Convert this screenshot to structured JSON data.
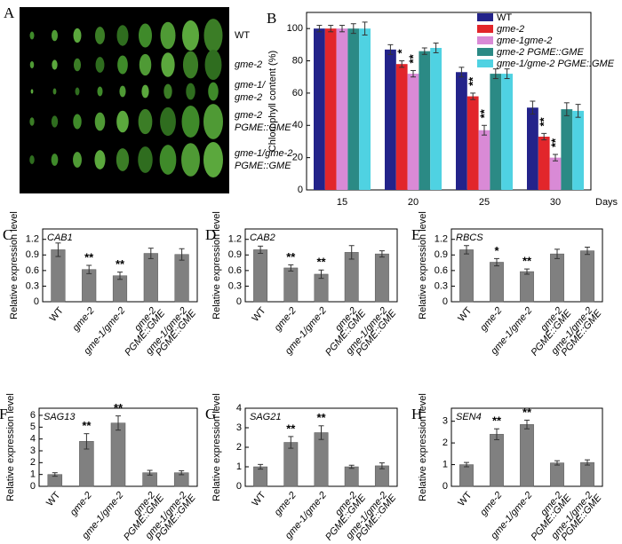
{
  "photo": {
    "panel": "A",
    "row_labels": [
      [
        "WT"
      ],
      [
        "gme-2"
      ],
      [
        "gme-1/",
        "gme-2"
      ],
      [
        "gme-2",
        "PGME::GME"
      ],
      [
        "gme-1/gme-2",
        "PGME::GME"
      ]
    ]
  },
  "chart_data": [
    {
      "type": "bar",
      "panel": "B",
      "y_label": "Chlorophyll content (%)",
      "x_label": "Days",
      "categories": [
        "15",
        "20",
        "25",
        "30"
      ],
      "ylim": [
        0,
        110
      ],
      "yticks": [
        0,
        20,
        40,
        60,
        80,
        100
      ],
      "series": [
        {
          "name": "WT",
          "color": "#23238a",
          "values": [
            100,
            87,
            73,
            51
          ],
          "errors": [
            2,
            3,
            3,
            4
          ],
          "significance": [
            null,
            null,
            null,
            null
          ]
        },
        {
          "name": "gme-2",
          "color": "#e2262b",
          "values": [
            100,
            78,
            58,
            33
          ],
          "errors": [
            2,
            2,
            2,
            2
          ],
          "significance": [
            null,
            "*",
            "**",
            "**"
          ]
        },
        {
          "name": "gme-1gme-2",
          "color": "#d98ad6",
          "values": [
            100,
            72,
            37,
            20
          ],
          "errors": [
            2,
            2,
            3,
            2
          ],
          "significance": [
            null,
            "**",
            "**",
            "**"
          ]
        },
        {
          "name": "gme-2 PGME::GME",
          "color": "#2b8a85",
          "values": [
            100,
            86,
            72,
            50
          ],
          "errors": [
            3,
            2,
            3,
            4
          ],
          "significance": [
            null,
            null,
            null,
            null
          ]
        },
        {
          "name": "gme-1/gme-2 PGME::GME",
          "color": "#4fd2e2",
          "values": [
            100,
            88,
            72,
            49
          ],
          "errors": [
            4,
            3,
            3,
            4
          ],
          "significance": [
            null,
            null,
            null,
            null
          ]
        }
      ]
    },
    {
      "type": "bar",
      "panel": "C",
      "title": "CAB1",
      "y_label": "Relative expression level",
      "color": "#808080",
      "categories": [
        "WT",
        "gme-2",
        "gme-1/gme-2",
        [
          "gme-2",
          "PGME::GME"
        ],
        [
          "gme-1/gme-2",
          "PGME::GME"
        ]
      ],
      "ylim": [
        0,
        1.4
      ],
      "yticks": [
        0,
        0.3,
        0.6,
        0.9,
        1.2
      ],
      "values": [
        1.0,
        0.62,
        0.5,
        0.93,
        0.91
      ],
      "errors": [
        0.13,
        0.08,
        0.07,
        0.1,
        0.11
      ],
      "significance": [
        null,
        "**",
        "**",
        null,
        null
      ]
    },
    {
      "type": "bar",
      "panel": "D",
      "title": "CAB2",
      "y_label": "Relative expression level",
      "color": "#808080",
      "categories": [
        "WT",
        "gme-2",
        "gme-1/gme-2",
        [
          "gme-2",
          "PGME::GME"
        ],
        [
          "gme-1/gme-2",
          "PGME::GME"
        ]
      ],
      "ylim": [
        0,
        1.4
      ],
      "yticks": [
        0,
        0.3,
        0.6,
        0.9,
        1.2
      ],
      "values": [
        1.0,
        0.65,
        0.53,
        0.95,
        0.92
      ],
      "errors": [
        0.07,
        0.06,
        0.08,
        0.13,
        0.06
      ],
      "significance": [
        null,
        "**",
        "**",
        null,
        null
      ]
    },
    {
      "type": "bar",
      "panel": "E",
      "title": "RBCS",
      "y_label": "Relative expression level",
      "color": "#808080",
      "categories": [
        "WT",
        "gme-2",
        "gme-1/gme-2",
        [
          "gme-2",
          "PGME::GME"
        ],
        [
          "gme-1/gme-2",
          "PGME::GME"
        ]
      ],
      "ylim": [
        0,
        1.4
      ],
      "yticks": [
        0,
        0.3,
        0.6,
        0.9,
        1.2
      ],
      "values": [
        1.0,
        0.76,
        0.58,
        0.92,
        0.98
      ],
      "errors": [
        0.08,
        0.07,
        0.05,
        0.09,
        0.07
      ],
      "significance": [
        null,
        "*",
        "**",
        null,
        null
      ]
    },
    {
      "type": "bar",
      "panel": "F",
      "title": "SAG13",
      "y_label": "Relative expression level",
      "color": "#808080",
      "categories": [
        "WT",
        "gme-2",
        "gme-1/gme-2",
        [
          "gme-2",
          "PGME::GME"
        ],
        [
          "gme-1/gme-2",
          "PGME::GME"
        ]
      ],
      "ylim": [
        0,
        6.6
      ],
      "yticks": [
        0,
        1,
        2,
        3,
        4,
        5,
        6
      ],
      "values": [
        1.0,
        3.8,
        5.35,
        1.15,
        1.15
      ],
      "errors": [
        0.15,
        0.65,
        0.6,
        0.2,
        0.17
      ],
      "significance": [
        null,
        "**",
        "**",
        null,
        null
      ]
    },
    {
      "type": "bar",
      "panel": "G",
      "title": "SAG21",
      "y_label": "Relative expression level",
      "color": "#808080",
      "categories": [
        "WT",
        "gme-2",
        "gme-1/gme-2",
        [
          "gme-2",
          "PGME::GME"
        ],
        [
          "gme-1/gme-2",
          "PGME::GME"
        ]
      ],
      "ylim": [
        0,
        4
      ],
      "yticks": [
        0,
        1,
        2,
        3,
        4
      ],
      "values": [
        1.0,
        2.25,
        2.75,
        1.0,
        1.05
      ],
      "errors": [
        0.12,
        0.3,
        0.35,
        0.08,
        0.15
      ],
      "significance": [
        null,
        "**",
        "**",
        null,
        null
      ]
    },
    {
      "type": "bar",
      "panel": "H",
      "title": "SEN4",
      "y_label": "Relative expression level",
      "color": "#808080",
      "categories": [
        "WT",
        "gme-2",
        "gme-1/gme-2",
        [
          "gme-2",
          "PGME::GME"
        ],
        [
          "gme-1/gme-2",
          "PGME::GME"
        ]
      ],
      "ylim": [
        0,
        3.6
      ],
      "yticks": [
        0,
        1,
        2,
        3
      ],
      "values": [
        1.0,
        2.4,
        2.85,
        1.08,
        1.1
      ],
      "errors": [
        0.1,
        0.25,
        0.2,
        0.1,
        0.12
      ],
      "significance": [
        null,
        "**",
        "**",
        null,
        null
      ]
    }
  ]
}
